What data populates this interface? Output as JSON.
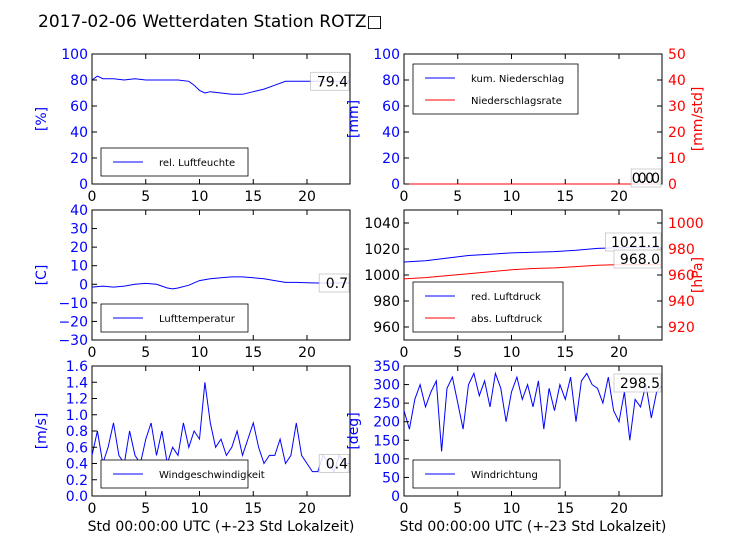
{
  "title": "2017-02-06 Wetterdaten Station ROTZ□",
  "colors": {
    "blue": "#0000ff",
    "red": "#ff0000",
    "black": "#000000"
  },
  "chart_data": [
    {
      "id": "humidity",
      "type": "line",
      "ylabel": "[%]",
      "ylabel_color": "#0000ff",
      "ylim": [
        0,
        100
      ],
      "yticks": [
        "0",
        "20",
        "40",
        "60",
        "80",
        "100"
      ],
      "xlim": [
        0,
        24
      ],
      "xticks": [
        "0",
        "5",
        "10",
        "15",
        "20"
      ],
      "legend": [
        "rel. Luftfeuchte"
      ],
      "legend_pos": "lower-left",
      "value_box": "79.4",
      "series": [
        {
          "name": "rel. Luftfeuchte",
          "color": "#0000ff",
          "x": [
            0,
            0.5,
            1,
            2,
            3,
            4,
            5,
            6,
            7,
            8,
            9,
            9.5,
            10,
            10.5,
            11,
            12,
            13,
            14,
            15,
            16,
            17,
            18,
            19,
            20,
            21,
            22,
            23,
            24
          ],
          "y": [
            80,
            83,
            81,
            81,
            80,
            81,
            80,
            80,
            80,
            80,
            79,
            76,
            72,
            70,
            71,
            70,
            69,
            69,
            71,
            73,
            76,
            79,
            79,
            79,
            79,
            79,
            79,
            79
          ]
        }
      ]
    },
    {
      "id": "precip",
      "type": "line",
      "ylabel": "[mm]",
      "ylabel_color": "#0000ff",
      "ylim": [
        0,
        100
      ],
      "yticks": [
        "0",
        "20",
        "40",
        "60",
        "80",
        "100"
      ],
      "y2label": "[mm/std]",
      "y2label_color": "#ff0000",
      "y2lim": [
        0,
        50
      ],
      "y2ticks": [
        "0",
        "10",
        "20",
        "30",
        "40",
        "50"
      ],
      "xlim": [
        0,
        24
      ],
      "xticks": [
        "0",
        "5",
        "10",
        "15",
        "20"
      ],
      "legend": [
        "kum. Niederschlag",
        "Niederschlagsrate"
      ],
      "legend_pos": "upper-left",
      "value_box": "0.0",
      "value_box2": "0.0",
      "series": [
        {
          "name": "kum. Niederschlag",
          "color": "#0000ff",
          "x": [
            0,
            24
          ],
          "y": [
            0,
            0
          ]
        },
        {
          "name": "Niederschlagsrate",
          "color": "#ff0000",
          "axis": "y2",
          "x": [
            0,
            24
          ],
          "y": [
            0,
            0
          ]
        }
      ]
    },
    {
      "id": "temperature",
      "type": "line",
      "ylabel": "[C]",
      "ylabel_color": "#0000ff",
      "ylim": [
        -30,
        40
      ],
      "yticks": [
        "−30",
        "−20",
        "−10",
        "0",
        "10",
        "20",
        "30",
        "40"
      ],
      "xlim": [
        0,
        24
      ],
      "xticks": [
        "0",
        "5",
        "10",
        "15",
        "20"
      ],
      "legend": [
        "Lufttemperatur"
      ],
      "legend_pos": "lower-left",
      "value_box": "0.7",
      "series": [
        {
          "name": "Lufttemperatur",
          "color": "#0000ff",
          "x": [
            0,
            1,
            2,
            3,
            4,
            5,
            6,
            7,
            7.5,
            8,
            9,
            10,
            11,
            12,
            13,
            14,
            15,
            16,
            17,
            18,
            19,
            20,
            21,
            22,
            23,
            24
          ],
          "y": [
            -1.5,
            -1,
            -1.5,
            -1,
            0,
            0.5,
            0,
            -2,
            -2.5,
            -2,
            -0.5,
            2,
            3,
            3.5,
            4,
            4,
            3.5,
            3,
            2,
            1,
            1,
            0.8,
            0.7,
            0.7,
            0.7,
            0.7
          ]
        }
      ]
    },
    {
      "id": "pressure",
      "type": "line",
      "ylabel": "",
      "ylim": [
        950,
        1050
      ],
      "yticks": [
        "960",
        "980",
        "1000",
        "1020",
        "1040"
      ],
      "y2label": "[hPa]",
      "y2label_color": "#ff0000",
      "y2lim": [
        910,
        1010
      ],
      "y2ticks": [
        "920",
        "940",
        "960",
        "980",
        "1000"
      ],
      "xlim": [
        0,
        24
      ],
      "xticks": [
        "0",
        "5",
        "10",
        "15",
        "20"
      ],
      "legend": [
        "red. Luftdruck",
        "abs. Luftdruck"
      ],
      "legend_pos": "lower-left",
      "value_box": "1021.1",
      "value_box2": "968.0",
      "series": [
        {
          "name": "red. Luftdruck",
          "color": "#0000ff",
          "x": [
            0,
            2,
            4,
            6,
            8,
            10,
            12,
            14,
            16,
            18,
            20,
            22,
            24
          ],
          "y": [
            1010,
            1011,
            1013,
            1015,
            1016,
            1017,
            1017.5,
            1018,
            1019,
            1020.5,
            1021,
            1021.1,
            1021.1
          ]
        },
        {
          "name": "abs. Luftdruck",
          "color": "#ff0000",
          "axis": "y2",
          "x": [
            0,
            2,
            4,
            6,
            8,
            10,
            12,
            14,
            16,
            18,
            20,
            22,
            24
          ],
          "y": [
            957,
            958,
            959.5,
            961,
            962.5,
            964,
            965,
            965.5,
            966.5,
            967.5,
            968,
            968,
            968
          ]
        }
      ]
    },
    {
      "id": "wind",
      "type": "line",
      "ylabel": "[m/s]",
      "ylabel_color": "#0000ff",
      "ylim": [
        0,
        1.6
      ],
      "yticks": [
        "0.0",
        "0.2",
        "0.4",
        "0.6",
        "0.8",
        "1.0",
        "1.2",
        "1.4",
        "1.6"
      ],
      "xlabel": "Std 00:00:00 UTC (+-23 Std Lokalzeit)",
      "xlim": [
        0,
        24
      ],
      "xticks": [
        "0",
        "5",
        "10",
        "15",
        "20"
      ],
      "legend": [
        "Windgeschwindigkeit"
      ],
      "legend_pos": "lower-left",
      "value_box": "0.4",
      "series": [
        {
          "name": "Windgeschwindigkeit",
          "color": "#0000ff",
          "x": [
            0,
            0.5,
            1,
            1.5,
            2,
            2.5,
            3,
            3.5,
            4,
            4.5,
            5,
            5.5,
            6,
            6.5,
            7,
            7.5,
            8,
            8.5,
            9,
            9.5,
            10,
            10.5,
            11,
            11.5,
            12,
            12.5,
            13,
            13.5,
            14,
            14.5,
            15,
            15.5,
            16,
            16.5,
            17,
            17.5,
            18,
            18.5,
            19,
            19.5,
            20,
            20.5,
            21,
            21.5,
            22,
            22.5,
            23,
            23.5,
            24
          ],
          "y": [
            0.5,
            0.8,
            0.4,
            0.6,
            0.9,
            0.5,
            0.4,
            0.8,
            0.5,
            0.4,
            0.7,
            0.9,
            0.5,
            0.8,
            0.4,
            0.6,
            0.5,
            0.9,
            0.6,
            0.8,
            0.7,
            1.4,
            0.9,
            0.6,
            0.7,
            0.5,
            0.6,
            0.8,
            0.5,
            0.7,
            0.9,
            0.6,
            0.4,
            0.5,
            0.5,
            0.7,
            0.4,
            0.5,
            0.9,
            0.5,
            0.4,
            0.3,
            0.3,
            0.5,
            0.4,
            0.3,
            0.5,
            0.4,
            0.4
          ]
        }
      ]
    },
    {
      "id": "direction",
      "type": "line",
      "ylabel": "[deg]",
      "ylabel_color": "#0000ff",
      "ylim": [
        0,
        350
      ],
      "yticks": [
        "0",
        "50",
        "100",
        "150",
        "200",
        "250",
        "300",
        "350"
      ],
      "xlabel": "Std 00:00:00 UTC (+-23 Std Lokalzeit)",
      "xlim": [
        0,
        24
      ],
      "xticks": [
        "0",
        "5",
        "10",
        "15",
        "20"
      ],
      "legend": [
        "Windrichtung"
      ],
      "legend_pos": "lower-left",
      "value_box": "298.5",
      "series": [
        {
          "name": "Windrichtung",
          "color": "#0000ff",
          "x": [
            0,
            0.5,
            1,
            1.5,
            2,
            2.5,
            3,
            3.5,
            4,
            4.5,
            5,
            5.5,
            6,
            6.5,
            7,
            7.5,
            8,
            8.5,
            9,
            9.5,
            10,
            10.5,
            11,
            11.5,
            12,
            12.5,
            13,
            13.5,
            14,
            14.5,
            15,
            15.5,
            16,
            16.5,
            17,
            17.5,
            18,
            18.5,
            19,
            19.5,
            20,
            20.5,
            21,
            21.5,
            22,
            22.5,
            23,
            23.5,
            24
          ],
          "y": [
            230,
            180,
            260,
            300,
            240,
            280,
            310,
            120,
            290,
            320,
            250,
            180,
            300,
            330,
            270,
            310,
            240,
            330,
            290,
            200,
            280,
            320,
            260,
            300,
            240,
            310,
            180,
            290,
            230,
            300,
            260,
            320,
            200,
            310,
            330,
            300,
            290,
            250,
            320,
            230,
            200,
            280,
            150,
            260,
            240,
            300,
            210,
            280,
            298
          ]
        }
      ]
    }
  ]
}
